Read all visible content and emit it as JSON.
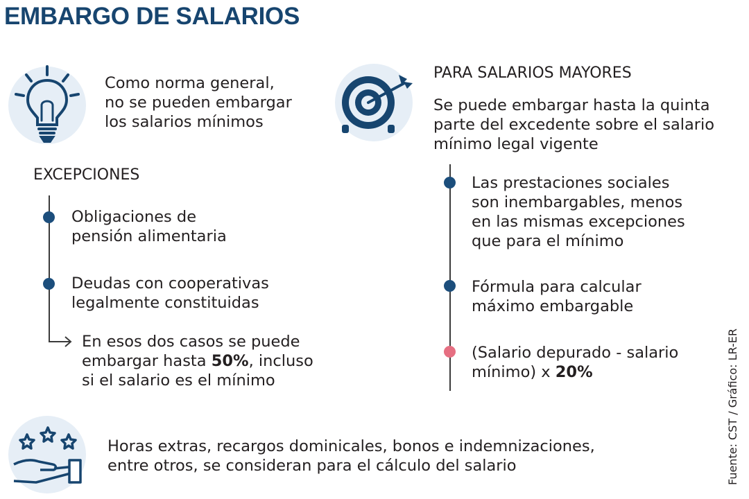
{
  "title": "EMBARGO DE SALARIOS",
  "colors": {
    "brand": "#17456f",
    "bullet": "#1c4e7c",
    "bullet_accent": "#e66f82",
    "icon_bg": "#e6eef6"
  },
  "general": {
    "icon": "lightbulb-icon",
    "lines": [
      "Como norma general,",
      "no se pueden embargar",
      "los salarios mínimos"
    ]
  },
  "excepciones": {
    "heading": "EXCEPCIONES",
    "items": [
      {
        "lines": [
          "Obligaciones de",
          "pensión alimentaria"
        ]
      },
      {
        "lines": [
          "Deudas con cooperativas",
          "legalmente constituidas"
        ]
      }
    ],
    "note": {
      "line1": "En esos dos casos se puede",
      "line2_before": "embargar hasta ",
      "line2_bold": "50%",
      "line2_after": ", incluso",
      "line3": "si el salario es el mínimo"
    }
  },
  "mayores": {
    "icon": "target-icon",
    "heading": "PARA SALARIOS MAYORES",
    "lines": [
      "Se puede embargar hasta la quinta",
      "parte del excedente sobre el salario",
      "mínimo legal vigente"
    ],
    "items": [
      {
        "lines": [
          "Las prestaciones sociales",
          "son inembargables, menos",
          "en las mismas excepciones",
          "que para el mínimo"
        ]
      },
      {
        "lines": [
          "Fórmula para calcular",
          "máximo embargable"
        ]
      }
    ],
    "formula": {
      "line1": "(Salario depurado - salario",
      "line2_before": "mínimo) x ",
      "line2_bold": "20%"
    }
  },
  "bottom": {
    "icon": "hand-stars-icon",
    "lines": [
      "Horas extras, recargos dominicales, bonos e indemnizaciones,",
      "entre otros, se consideran para el cálculo del salario"
    ]
  },
  "source": "Fuente: CST  / Gráfico: LR-ER"
}
